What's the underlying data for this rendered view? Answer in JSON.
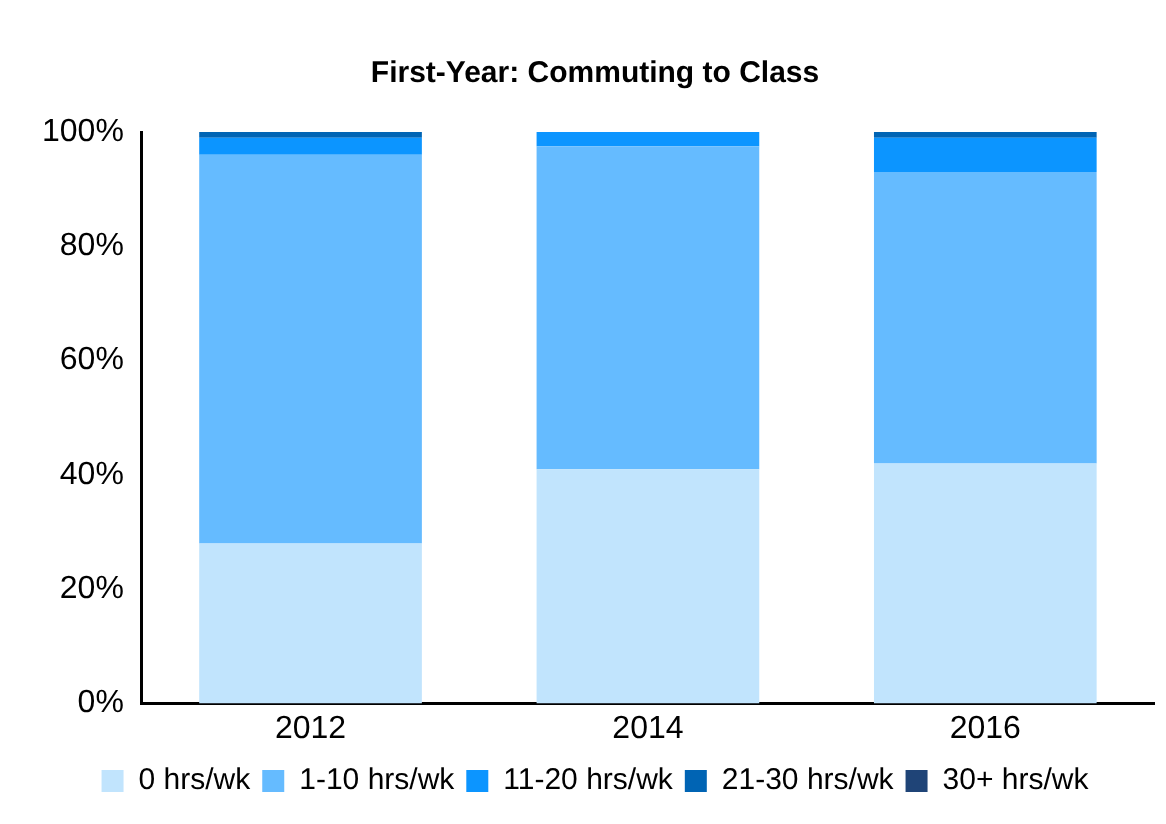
{
  "chart_data": {
    "type": "bar",
    "title": "First-Year: Commuting to Class",
    "categories": [
      "2012",
      "2014",
      "2016"
    ],
    "stacked": true,
    "series": [
      {
        "name": "0 hrs/wk",
        "color": "#c1e4fd",
        "values": [
          28,
          41,
          42
        ]
      },
      {
        "name": "1-10 hrs/wk",
        "color": "#65bbff",
        "values": [
          68,
          56.5,
          51
        ]
      },
      {
        "name": "11-20 hrs/wk",
        "color": "#0c95ff",
        "values": [
          3,
          2.5,
          6
        ]
      },
      {
        "name": "21-30 hrs/wk",
        "color": "#0064b4",
        "values": [
          1,
          0,
          1
        ]
      },
      {
        "name": "30+ hrs/wk",
        "color": "#1f4477",
        "values": [
          0,
          0,
          0
        ]
      }
    ],
    "ylim": [
      0,
      100
    ],
    "yticks": [
      {
        "value": 0,
        "label": "0%"
      },
      {
        "value": 20,
        "label": "20%"
      },
      {
        "value": 40,
        "label": "40%"
      },
      {
        "value": 60,
        "label": "60%"
      },
      {
        "value": 80,
        "label": "80%"
      },
      {
        "value": 100,
        "label": "100%"
      }
    ],
    "grid": false,
    "legend": "bottom"
  }
}
